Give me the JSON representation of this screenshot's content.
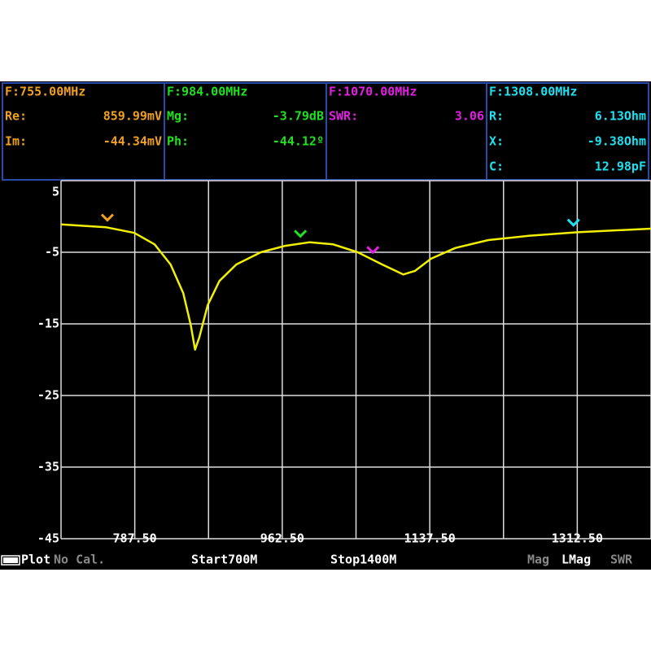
{
  "markers": [
    {
      "heading": "F:755.00MHz",
      "color": "#f0a020",
      "rows": [
        [
          "Re:",
          "859.99mV"
        ],
        [
          "Im:",
          "-44.34mV"
        ]
      ]
    },
    {
      "heading": "F:984.00MHz",
      "color": "#20e020",
      "rows": [
        [
          "Mg:",
          "-3.79dB"
        ],
        [
          "Ph:",
          "-44.12º"
        ]
      ]
    },
    {
      "heading": "F:1070.00MHz",
      "color": "#e020e0",
      "rows": [
        [
          "SWR:",
          "3.06"
        ]
      ]
    },
    {
      "heading": "F:1308.00MHz",
      "color": "#20e0f0",
      "rows": [
        [
          "R:",
          "6.13Ohm"
        ],
        [
          "X:",
          "-9.38Ohm"
        ],
        [
          "C:",
          "12.98pF"
        ]
      ]
    }
  ],
  "chart_data": {
    "type": "line",
    "x": [
      700,
      753,
      787,
      811,
      830,
      845,
      854,
      859,
      864,
      874,
      888,
      908,
      937,
      966,
      995,
      1023,
      1052,
      1081,
      1106,
      1120,
      1139,
      1168,
      1207,
      1255,
      1313,
      1400
    ],
    "values": [
      -1.1,
      -1.5,
      -2.3,
      -3.9,
      -6.7,
      -10.7,
      -15.2,
      -18.6,
      -16.9,
      -12.4,
      -9.0,
      -6.7,
      -5.0,
      -4.1,
      -3.6,
      -3.9,
      -5.0,
      -6.7,
      -8.1,
      -7.6,
      -5.9,
      -4.4,
      -3.3,
      -2.7,
      -2.2,
      -1.7
    ],
    "color": "#f0f000",
    "xlim": [
      700,
      1400
    ],
    "ylim": [
      -45,
      5
    ],
    "xticks": [
      {
        "value": 787.5,
        "label": "787.50"
      },
      {
        "value": 962.5,
        "label": "962.50"
      },
      {
        "value": 1137.5,
        "label": "1137.50"
      },
      {
        "value": 1312.5,
        "label": "1312.50"
      }
    ],
    "minor_xticks": [
      700,
      875,
      1050,
      1225,
      1400
    ],
    "yticks": [
      5,
      -5,
      -15,
      -25,
      -35,
      -45
    ],
    "grid": true,
    "marker_x": [
      755,
      984,
      1070,
      1308
    ],
    "marker_colors": [
      "#f0a020",
      "#20e020",
      "#e020e0",
      "#20e0f0"
    ]
  },
  "status": {
    "plot": "Plot",
    "cal": "No Cal.",
    "start": "Start700M",
    "stop": "Stop1400M",
    "modes": [
      "Mag",
      "LMag",
      "SWR"
    ]
  }
}
